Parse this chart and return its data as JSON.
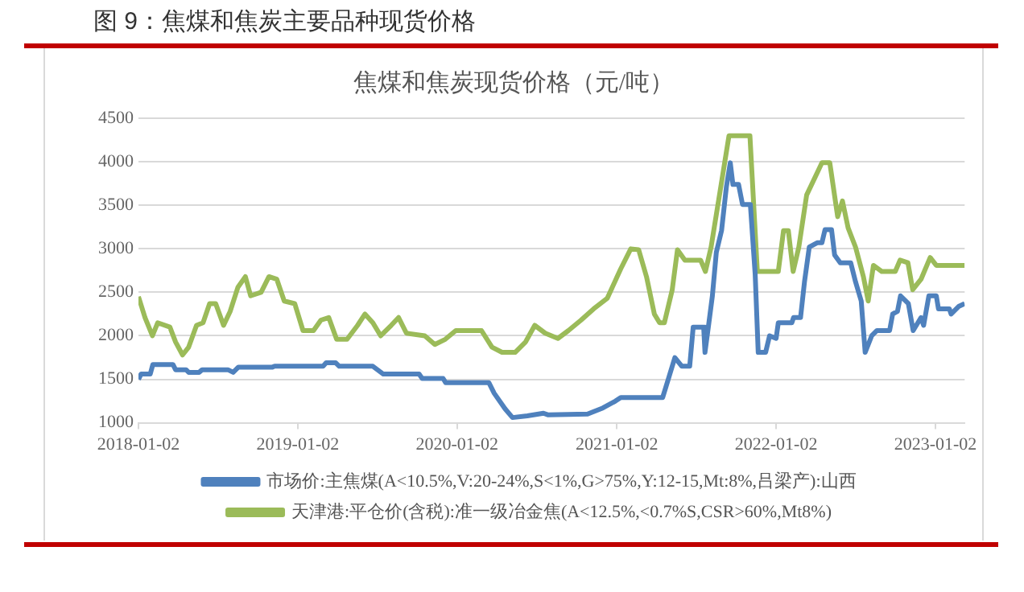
{
  "chart_data": {
    "type": "line",
    "title": "图 9：焦煤和焦炭主要品种现货价格",
    "subtitle": "焦煤和焦炭现货价格（元/吨）",
    "xlim": [
      "2018-01-02",
      "2023-03-10"
    ],
    "xticks": [
      "2018-01-02",
      "2019-01-02",
      "2020-01-02",
      "2021-01-02",
      "2022-01-02",
      "2023-01-02"
    ],
    "ylim": [
      1000,
      4500
    ],
    "yticks": [
      1000,
      1500,
      2000,
      2500,
      3000,
      3500,
      4000,
      4500
    ],
    "grid": "y",
    "legend": "bottom",
    "series": [
      {
        "name": "市场价:主焦煤(A<10.5%,V:20-24%,S<1%,G>75%,Y:12-15,Mt:8%,吕梁产):山西",
        "color": "#4f81bd",
        "x": [
          "2018-01-02",
          "2018-01-08",
          "2018-01-29",
          "2018-02-04",
          "2018-03-22",
          "2018-03-28",
          "2018-04-21",
          "2018-04-27",
          "2018-05-21",
          "2018-05-28",
          "2018-07-26",
          "2018-08-07",
          "2018-08-19",
          "2018-11-05",
          "2018-11-10",
          "2019-03-01",
          "2019-03-08",
          "2019-03-30",
          "2019-04-07",
          "2019-06-23",
          "2019-07-17",
          "2019-10-07",
          "2019-10-14",
          "2019-12-01",
          "2019-12-07",
          "2020-03-15",
          "2020-03-27",
          "2020-04-21",
          "2020-05-08",
          "2020-06-11",
          "2020-07-18",
          "2020-07-29",
          "2020-10-27",
          "2020-12-01",
          "2020-12-30",
          "2021-01-11",
          "2021-04-17",
          "2021-04-28",
          "2021-05-15",
          "2021-05-31",
          "2021-06-18",
          "2021-06-26",
          "2021-07-20",
          "2021-07-23",
          "2021-08-01",
          "2021-08-09",
          "2021-08-18",
          "2021-08-30",
          "2021-09-10",
          "2021-09-19",
          "2021-09-25",
          "2021-10-08",
          "2021-10-17",
          "2021-11-04",
          "2021-11-15",
          "2021-11-22",
          "2021-12-09",
          "2021-12-18",
          "2022-01-02",
          "2022-01-07",
          "2022-02-07",
          "2022-02-11",
          "2022-02-27",
          "2022-03-08",
          "2022-03-19",
          "2022-04-06",
          "2022-04-17",
          "2022-04-24",
          "2022-05-09",
          "2022-05-16",
          "2022-05-29",
          "2022-06-22",
          "2022-07-03",
          "2022-07-16",
          "2022-07-25",
          "2022-08-09",
          "2022-08-21",
          "2022-09-19",
          "2022-09-26",
          "2022-10-07",
          "2022-10-14",
          "2022-11-01",
          "2022-11-12",
          "2022-11-30",
          "2022-12-06",
          "2022-12-18",
          "2023-01-04",
          "2023-01-09",
          "2023-02-03",
          "2023-02-07",
          "2023-02-25",
          "2023-03-10"
        ],
        "values": [
          1500,
          1560,
          1560,
          1670,
          1670,
          1610,
          1610,
          1580,
          1580,
          1610,
          1610,
          1580,
          1640,
          1640,
          1650,
          1650,
          1690,
          1690,
          1650,
          1650,
          1560,
          1560,
          1510,
          1510,
          1460,
          1460,
          1340,
          1160,
          1060,
          1080,
          1110,
          1090,
          1100,
          1170,
          1250,
          1290,
          1290,
          1470,
          1750,
          1650,
          1650,
          2100,
          2100,
          1810,
          2150,
          2460,
          2960,
          3210,
          3710,
          3990,
          3740,
          3740,
          3510,
          3510,
          2710,
          1810,
          1810,
          2000,
          1970,
          2150,
          2150,
          2210,
          2210,
          2620,
          3020,
          3070,
          3070,
          3220,
          3220,
          2930,
          2840,
          2840,
          2620,
          2400,
          1810,
          2000,
          2060,
          2060,
          2250,
          2280,
          2460,
          2370,
          2060,
          2210,
          2120,
          2460,
          2460,
          2310,
          2310,
          2250,
          2340,
          2370
        ]
      },
      {
        "name": "天津港:平仓价(含税):准一级冶金焦(A<12.5%,<0.7%S,CSR>60%,Mt8%)",
        "color": "#9bbb59",
        "x": [
          "2018-01-02",
          "2018-01-17",
          "2018-02-03",
          "2018-02-15",
          "2018-03-15",
          "2018-03-28",
          "2018-04-13",
          "2018-04-27",
          "2018-05-15",
          "2018-05-30",
          "2018-06-14",
          "2018-06-28",
          "2018-07-16",
          "2018-07-31",
          "2018-08-18",
          "2018-09-04",
          "2018-09-16",
          "2018-10-10",
          "2018-10-28",
          "2018-11-15",
          "2018-12-02",
          "2018-12-26",
          "2019-01-14",
          "2019-02-07",
          "2019-02-24",
          "2019-03-14",
          "2019-04-01",
          "2019-04-25",
          "2019-05-19",
          "2019-06-05",
          "2019-06-23",
          "2019-07-11",
          "2019-08-04",
          "2019-08-21",
          "2019-09-08",
          "2019-10-20",
          "2019-11-12",
          "2019-12-06",
          "2019-12-30",
          "2020-02-27",
          "2020-03-22",
          "2020-04-14",
          "2020-05-14",
          "2020-06-07",
          "2020-06-28",
          "2020-07-22",
          "2020-08-20",
          "2020-09-13",
          "2020-10-12",
          "2020-11-10",
          "2020-12-11",
          "2021-01-11",
          "2021-02-03",
          "2021-02-21",
          "2021-03-11",
          "2021-03-29",
          "2021-04-10",
          "2021-04-21",
          "2021-05-09",
          "2021-05-21",
          "2021-06-07",
          "2021-07-13",
          "2021-07-24",
          "2021-08-06",
          "2021-08-23",
          "2021-09-16",
          "2021-11-03",
          "2021-11-20",
          "2022-01-07",
          "2022-01-19",
          "2022-01-30",
          "2022-02-10",
          "2022-02-23",
          "2022-03-13",
          "2022-04-17",
          "2022-05-05",
          "2022-05-23",
          "2022-06-03",
          "2022-06-16",
          "2022-07-03",
          "2022-07-21",
          "2022-08-01",
          "2022-08-13",
          "2022-09-01",
          "2022-10-02",
          "2022-10-13",
          "2022-10-31",
          "2022-11-11",
          "2022-11-30",
          "2022-12-21",
          "2023-01-04",
          "2023-03-10"
        ],
        "values": [
          2450,
          2210,
          2000,
          2150,
          2100,
          1930,
          1780,
          1870,
          2120,
          2150,
          2370,
          2370,
          2120,
          2280,
          2560,
          2680,
          2460,
          2500,
          2680,
          2650,
          2400,
          2370,
          2060,
          2060,
          2180,
          2210,
          1960,
          1960,
          2120,
          2250,
          2150,
          2000,
          2120,
          2210,
          2030,
          2000,
          1900,
          1960,
          2060,
          2060,
          1870,
          1810,
          1810,
          1930,
          2120,
          2030,
          1970,
          2060,
          2180,
          2310,
          2430,
          2770,
          3000,
          2990,
          2680,
          2250,
          2150,
          2150,
          2530,
          2990,
          2870,
          2870,
          2740,
          3020,
          3550,
          4300,
          4300,
          2740,
          2740,
          3210,
          3210,
          2740,
          3020,
          3620,
          3990,
          3990,
          3370,
          3550,
          3240,
          3020,
          2680,
          2400,
          2810,
          2740,
          2740,
          2870,
          2840,
          2530,
          2650,
          2900,
          2810,
          2810
        ]
      }
    ]
  }
}
